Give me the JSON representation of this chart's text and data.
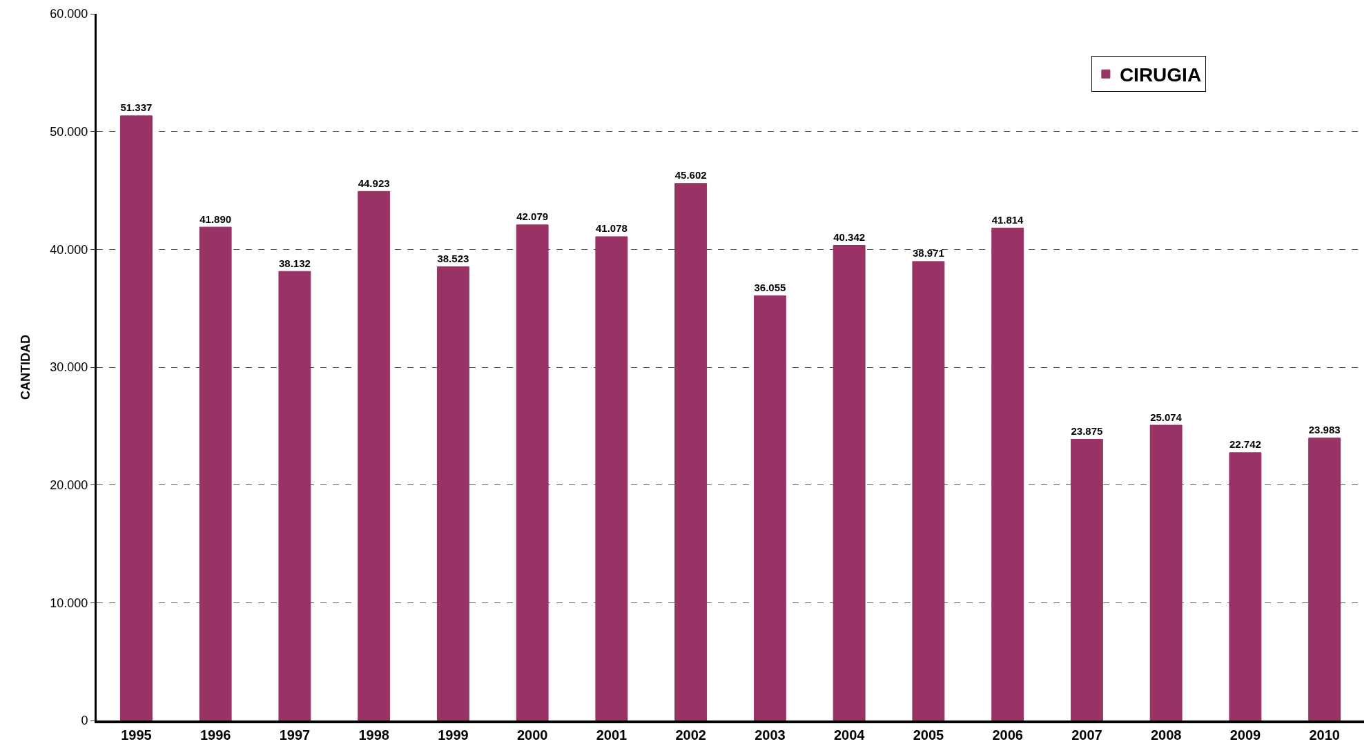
{
  "chart_data": {
    "type": "bar",
    "ylabel": "CANTIDAD",
    "categories": [
      "1995",
      "1996",
      "1997",
      "1998",
      "1999",
      "2000",
      "2001",
      "2002",
      "2003",
      "2004",
      "2005",
      "2006",
      "2007",
      "2008",
      "2009",
      "2010"
    ],
    "series": [
      {
        "name": "CIRUGIA",
        "color": "#993366",
        "values": [
          51337,
          41890,
          38132,
          44923,
          38523,
          42079,
          41078,
          45602,
          36055,
          40342,
          38971,
          41814,
          23875,
          25074,
          22742,
          23983
        ],
        "value_labels": [
          "51.337",
          "41.890",
          "38.132",
          "44.923",
          "38.523",
          "42.079",
          "41.078",
          "45.602",
          "36.055",
          "40.342",
          "38.971",
          "41.814",
          "23.875",
          "25.074",
          "22.742",
          "23.983"
        ]
      }
    ],
    "ylim": [
      0,
      60000
    ],
    "yticks": [
      {
        "value": 0,
        "label": "0"
      },
      {
        "value": 10000,
        "label": "10.000"
      },
      {
        "value": 20000,
        "label": "20.000"
      },
      {
        "value": 30000,
        "label": "30.000"
      },
      {
        "value": 40000,
        "label": "40.000"
      },
      {
        "value": 50000,
        "label": "50.000"
      },
      {
        "value": 60000,
        "label": "60.000"
      }
    ],
    "grid": "y",
    "legend": "top right"
  }
}
